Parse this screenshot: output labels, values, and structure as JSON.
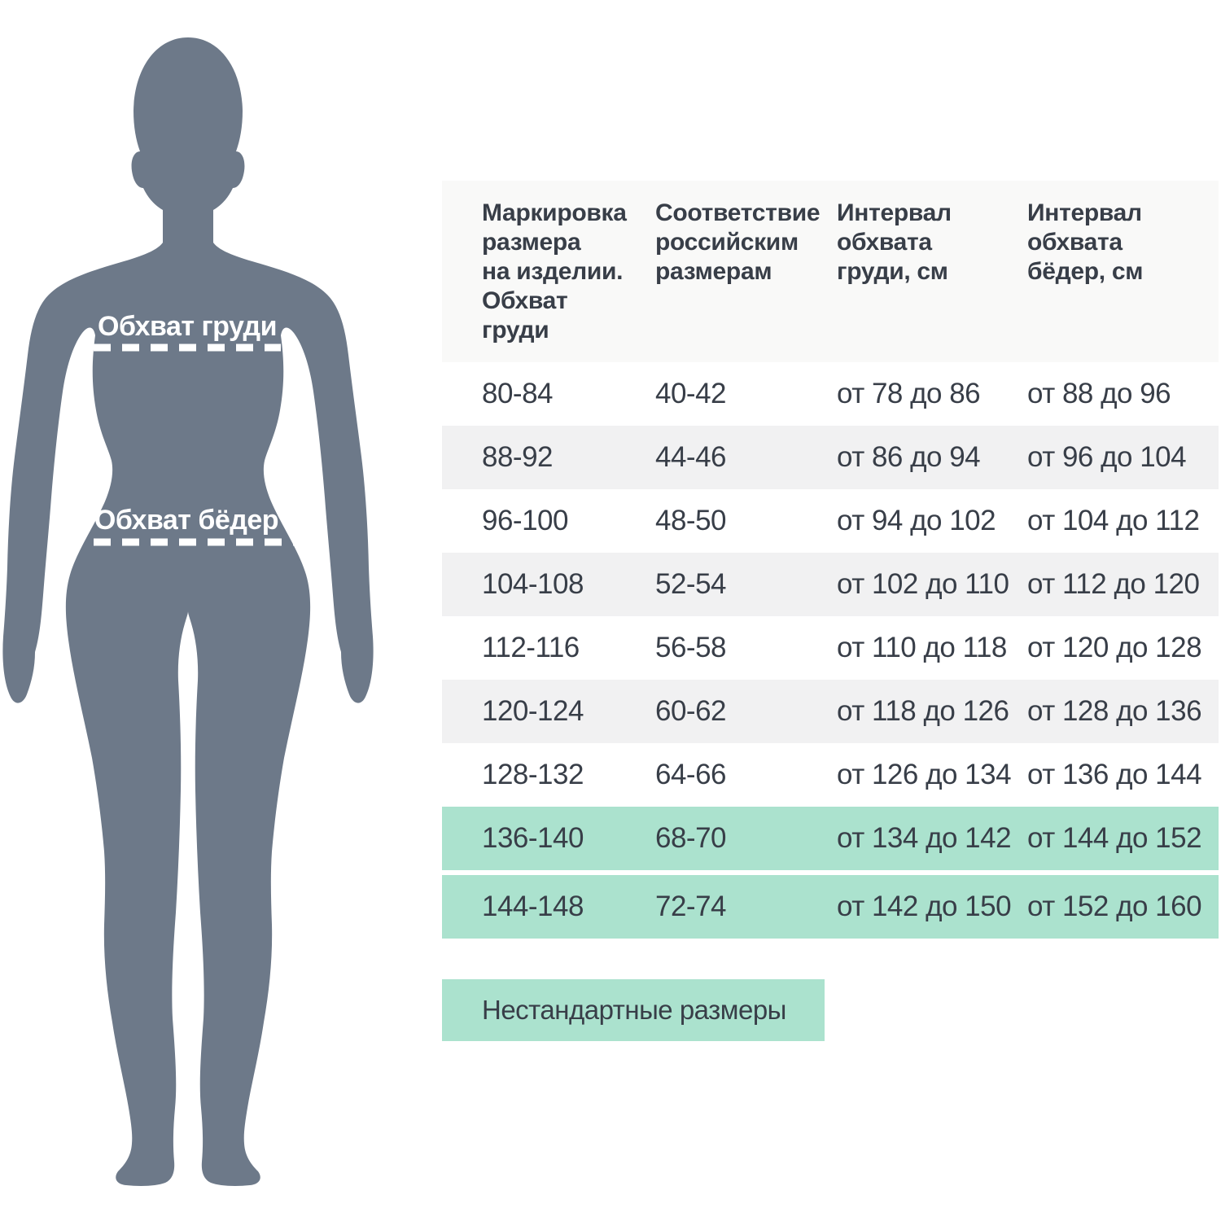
{
  "figure": {
    "silhouette_color": "#6d7989",
    "chest_label": "Обхват груди",
    "hips_label": "Обхват бёдер",
    "dash_color": "#ffffff"
  },
  "table": {
    "header_bg": "#f9f9f8",
    "stripe_color": "#f1f1f2",
    "highlight_color": "#abe2ce",
    "text_color": "#383e48",
    "headers": [
      "Маркировка\nразмера\nна изделии.\nОбхват\nгруди",
      "Соответствие\nроссийским\nразмерам",
      "Интервал\nобхвата\nгруди, см",
      "Интервал\nобхвата\nбёдер, см"
    ],
    "rows": [
      {
        "cells": [
          "80-84",
          "40-42",
          "от 78 до 86",
          "от 88 до 96"
        ],
        "nonstandard": false
      },
      {
        "cells": [
          "88-92",
          "44-46",
          "от 86 до 94",
          "от 96 до 104"
        ],
        "nonstandard": false
      },
      {
        "cells": [
          "96-100",
          "48-50",
          "от 94 до 102",
          "от 104 до 112"
        ],
        "nonstandard": false
      },
      {
        "cells": [
          "104-108",
          "52-54",
          "от 102 до 110",
          "от 112 до 120"
        ],
        "nonstandard": false
      },
      {
        "cells": [
          "112-116",
          "56-58",
          "от 110 до 118",
          "от 120 до 128"
        ],
        "nonstandard": false
      },
      {
        "cells": [
          "120-124",
          "60-62",
          "от 118 до 126",
          "от 128 до 136"
        ],
        "nonstandard": false
      },
      {
        "cells": [
          "128-132",
          "64-66",
          "от 126 до 134",
          "от 136 до 144"
        ],
        "nonstandard": false
      },
      {
        "cells": [
          "136-140",
          "68-70",
          "от 134 до 142",
          "от 144 до 152"
        ],
        "nonstandard": true
      },
      {
        "cells": [
          "144-148",
          "72-74",
          "от 142 до 150",
          "от 152 до 160"
        ],
        "nonstandard": true
      }
    ]
  },
  "legend": {
    "label": "Нестандартные размеры",
    "color": "#abe2ce"
  },
  "chart_data": {
    "type": "table",
    "title": "Таблица размеров",
    "columns": [
      "Маркировка размера на изделии. Обхват груди",
      "Соответствие российским размерам",
      "Интервал обхвата груди, см",
      "Интервал обхвата бёдер, см"
    ],
    "rows": [
      [
        "80-84",
        "40-42",
        "от 78 до 86",
        "от 88 до 96"
      ],
      [
        "88-92",
        "44-46",
        "от 86 до 94",
        "от 96 до 104"
      ],
      [
        "96-100",
        "48-50",
        "от 94 до 102",
        "от 104 до 112"
      ],
      [
        "104-108",
        "52-54",
        "от 102 до 110",
        "от 112 до 120"
      ],
      [
        "112-116",
        "56-58",
        "от 110 до 118",
        "от 120 до 128"
      ],
      [
        "120-124",
        "60-62",
        "от 118 до 126",
        "от 128 до 136"
      ],
      [
        "128-132",
        "64-66",
        "от 126 до 134",
        "от 136 до 144"
      ],
      [
        "136-140",
        "68-70",
        "от 134 до 142",
        "от 144 до 152"
      ],
      [
        "144-148",
        "72-74",
        "от 142 до 150",
        "от 152 до 160"
      ]
    ],
    "highlighted_row_indices": [
      7,
      8
    ],
    "highlight_meaning": "Нестандартные размеры",
    "annotations": [
      "Обхват груди",
      "Обхват бёдер"
    ]
  }
}
